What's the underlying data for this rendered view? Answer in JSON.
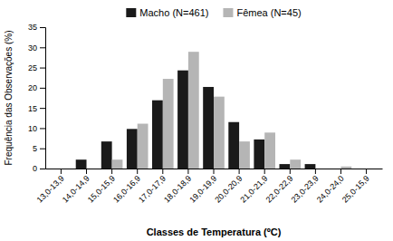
{
  "chart_data": {
    "type": "bar",
    "categories": [
      "13,0-13,9",
      "14,0-14,9",
      "15,0-15,9",
      "16,0-16,9",
      "17,0-17,9",
      "18,0-18,9",
      "19,0-19,9",
      "20,0-20,9",
      "21,0-21,9",
      "22,0-22,9",
      "23,0-23,9",
      "24,0-24,0",
      "25,0-15,9"
    ],
    "series": [
      {
        "name": "Macho (N=461)",
        "color": "#1a1a1a",
        "values": [
          0,
          2.2,
          6.7,
          9.8,
          16.9,
          24.3,
          20.2,
          11.5,
          7.2,
          1.1,
          1.1,
          0,
          0
        ]
      },
      {
        "name": "Fêmea (N=45)",
        "color": "#b5b5b5",
        "values": [
          0,
          0,
          2.2,
          11.1,
          22.2,
          28.9,
          17.8,
          6.7,
          8.9,
          2.2,
          0,
          0.5,
          0
        ]
      }
    ],
    "xlabel": "Classes de Temperatura (ºC)",
    "ylabel": "Frequência das Observações (%)",
    "ylim": [
      0,
      35
    ],
    "yticks": [
      0,
      5,
      10,
      15,
      20,
      25,
      30,
      35
    ],
    "legend": "top",
    "grid": false
  }
}
